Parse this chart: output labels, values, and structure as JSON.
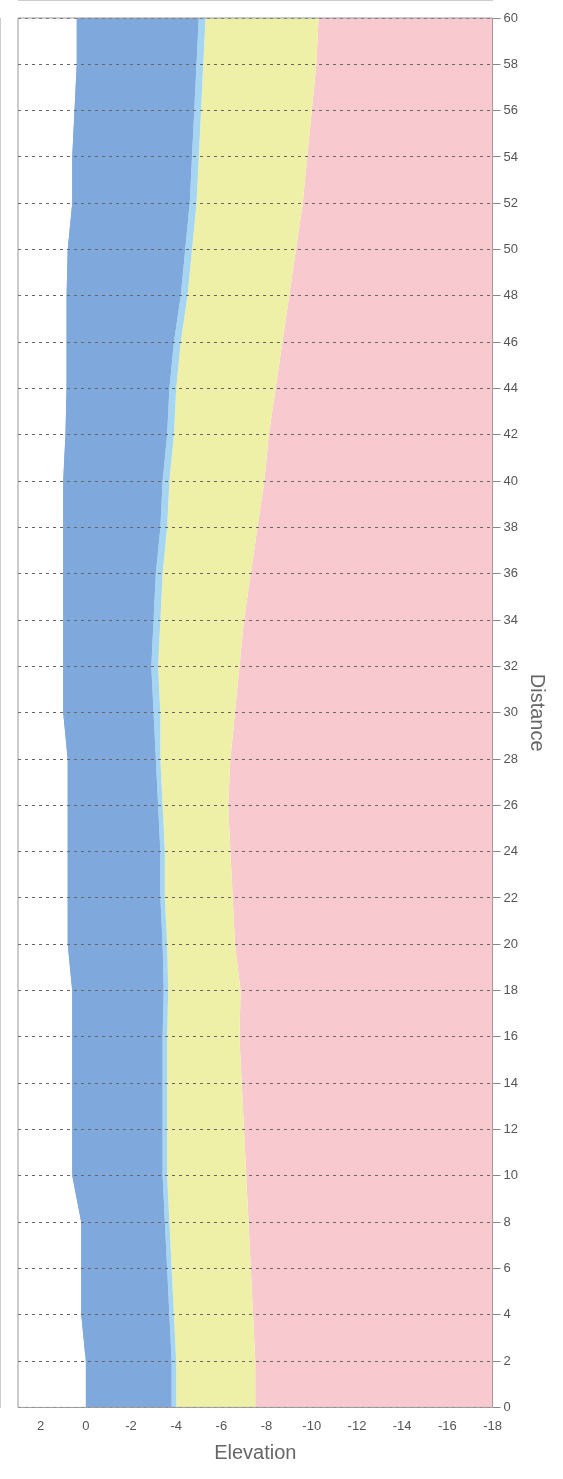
{
  "chart_data": {
    "type": "area",
    "stacked": true,
    "orientation": "horizontal",
    "xlabel": "Elevation",
    "ylabel": "Distance",
    "x": [
      0,
      2,
      4,
      6,
      8,
      10,
      12,
      14,
      16,
      18,
      20,
      22,
      24,
      26,
      28,
      30,
      32,
      34,
      36,
      38,
      40,
      42,
      44,
      46,
      48,
      50,
      52,
      54,
      56,
      58,
      60
    ],
    "series": [
      {
        "color": "#7fa8dc",
        "values": [
          0.0,
          0.0,
          0.2,
          0.2,
          0.2,
          0.6,
          0.6,
          0.6,
          0.6,
          0.6,
          0.8,
          0.8,
          0.8,
          0.8,
          0.8,
          1.0,
          1.0,
          1.0,
          1.0,
          1.0,
          1.0,
          0.9,
          0.85,
          0.85,
          0.85,
          0.8,
          0.6,
          0.6,
          0.5,
          0.4,
          0.4
        ]
      },
      {
        "color": "#7fa8dc",
        "values": [
          -3.8,
          -3.8,
          -3.9,
          -3.8,
          -3.7,
          -4.0,
          -4.0,
          -4.0,
          -4.0,
          -4.05,
          -4.2,
          -4.1,
          -4.1,
          -4.0,
          -3.9,
          -4.0,
          -3.9,
          -4.0,
          -4.1,
          -4.3,
          -4.4,
          -4.5,
          -4.55,
          -4.75,
          -5.05,
          -5.2,
          -5.2,
          -5.3,
          -5.3,
          -5.3,
          -5.4
        ]
      },
      {
        "color": "#a6d5f2",
        "values": [
          -0.2,
          -0.2,
          -0.2,
          -0.2,
          -0.2,
          -0.2,
          -0.2,
          -0.2,
          -0.2,
          -0.2,
          -0.2,
          -0.2,
          -0.2,
          -0.2,
          -0.2,
          -0.3,
          -0.3,
          -0.3,
          -0.3,
          -0.3,
          -0.3,
          -0.3,
          -0.3,
          -0.3,
          -0.3,
          -0.3,
          -0.3,
          -0.3,
          -0.3,
          -0.3,
          -0.3
        ]
      },
      {
        "color": "#eef0a8",
        "values": [
          -3.5,
          -3.5,
          -3.5,
          -3.5,
          -3.5,
          -3.5,
          -3.4,
          -3.3,
          -3.2,
          -3.2,
          -3.0,
          -3.0,
          -2.9,
          -2.9,
          -3.1,
          -3.3,
          -3.6,
          -3.7,
          -3.9,
          -4.0,
          -4.2,
          -4.2,
          -4.4,
          -4.5,
          -4.5,
          -4.6,
          -4.7,
          -4.8,
          -4.9,
          -5.0,
          -5.0
        ]
      },
      {
        "color": "#f8cad0",
        "values": [
          -10.5,
          -10.5,
          -10.6,
          -10.7,
          -10.8,
          -10.9,
          -11.0,
          -11.1,
          -11.2,
          -11.2,
          -11.4,
          -11.5,
          -11.6,
          -11.7,
          -11.6,
          -11.4,
          -11.2,
          -11.0,
          -10.7,
          -10.4,
          -10.1,
          -9.9,
          -9.6,
          -9.3,
          -9.0,
          -8.7,
          -8.4,
          -8.2,
          -8.0,
          -7.8,
          -7.7
        ]
      }
    ],
    "xlim": [
      3,
      -18
    ],
    "xticks": [
      2,
      0,
      -2,
      -4,
      -6,
      -8,
      -10,
      -12,
      -14,
      -16,
      -18
    ],
    "ylim": [
      0,
      60
    ],
    "yticks": [
      0,
      2,
      4,
      6,
      8,
      10,
      12,
      14,
      16,
      18,
      20,
      22,
      24,
      26,
      28,
      30,
      32,
      34,
      36,
      38,
      40,
      42,
      44,
      46,
      48,
      50,
      52,
      54,
      56,
      58,
      60
    ],
    "grid": "y"
  }
}
